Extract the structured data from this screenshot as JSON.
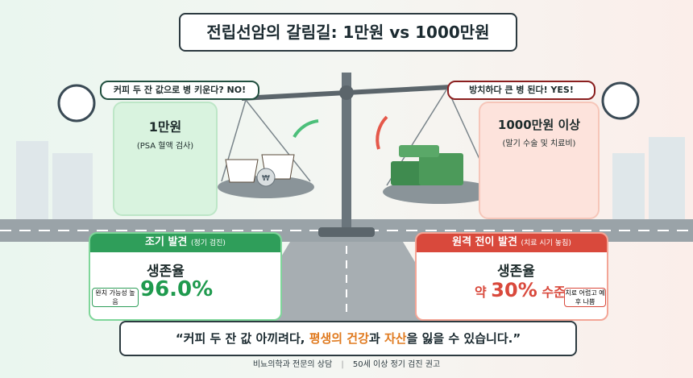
{
  "title": "전립선암의 갈림길: 1만원 vs 1000만원",
  "left": {
    "bubble": "커피 두 잔 값으로 병 키운다? NO!",
    "price": "1만원",
    "detail": "(PSA 혈액 검사)",
    "stage": "조기 발견",
    "stage_note": "(정기 검진)",
    "survival_label": "생존율",
    "survival_value": "96.0%",
    "badge": "완치 가능성 높음"
  },
  "right": {
    "bubble": "방치하다 큰 병 된다! YES!",
    "price": "1000만원 이상",
    "detail": "(말기 수술 및 치료비)",
    "stage": "원격 전이 발견",
    "stage_note": "(치료 시기 놓침)",
    "survival_label": "생존율",
    "survival_value": [
      "약 ",
      "30%",
      " 수준"
    ],
    "badge": "치료 어렵고 예후 나쁨"
  },
  "quote": [
    "“커피 두 잔 값 아끼려다, ",
    "평생의 건강",
    "과 ",
    "자산",
    "을 잃을 수 있습니다.”"
  ],
  "footer": [
    "비뇨의학과 전문의 상담",
    "50세 이상 정기 검진 권고"
  ]
}
